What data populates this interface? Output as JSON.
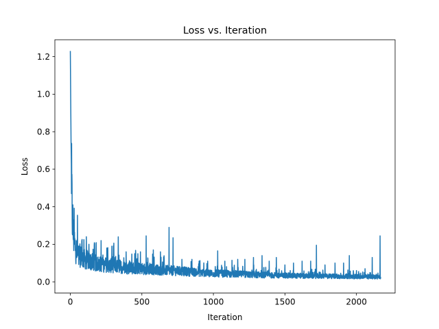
{
  "chart_data": {
    "type": "line",
    "title": "Loss vs. Iteration",
    "xlabel": "Iteration",
    "ylabel": "Loss",
    "xlim": [
      -108,
      2270
    ],
    "ylim": [
      -0.06,
      1.29
    ],
    "xticks": [
      0,
      500,
      1000,
      1500,
      2000
    ],
    "yticks": [
      0.0,
      0.2,
      0.4,
      0.6,
      0.8,
      1.0,
      1.2
    ],
    "ytick_labels": [
      "0.0",
      "0.2",
      "0.4",
      "0.6",
      "0.8",
      "1.0",
      "1.2"
    ],
    "grid": false,
    "line_color": "#1f77b4",
    "n_iterations": 2170,
    "series": [
      {
        "x": [
          0,
          5,
          10,
          15,
          20,
          30,
          40,
          60,
          80,
          100,
          150,
          200,
          300,
          400,
          500,
          600,
          700,
          800,
          900,
          1000,
          1200,
          1400,
          1600,
          1800,
          2000,
          2100,
          2170
        ],
        "y": [
          1.23,
          0.75,
          0.45,
          0.33,
          0.26,
          0.2,
          0.17,
          0.145,
          0.13,
          0.12,
          0.105,
          0.095,
          0.085,
          0.075,
          0.07,
          0.065,
          0.06,
          0.055,
          0.05,
          0.045,
          0.04,
          0.035,
          0.032,
          0.03,
          0.028,
          0.027,
          0.027
        ]
      }
    ],
    "spikes": [
      {
        "x": 18,
        "y": 0.41
      },
      {
        "x": 50,
        "y": 0.355
      },
      {
        "x": 80,
        "y": 0.22
      },
      {
        "x": 95,
        "y": 0.225
      },
      {
        "x": 130,
        "y": 0.2
      },
      {
        "x": 170,
        "y": 0.205
      },
      {
        "x": 215,
        "y": 0.22
      },
      {
        "x": 255,
        "y": 0.18
      },
      {
        "x": 290,
        "y": 0.19
      },
      {
        "x": 335,
        "y": 0.24
      },
      {
        "x": 390,
        "y": 0.16
      },
      {
        "x": 450,
        "y": 0.15
      },
      {
        "x": 490,
        "y": 0.16
      },
      {
        "x": 530,
        "y": 0.245
      },
      {
        "x": 580,
        "y": 0.17
      },
      {
        "x": 630,
        "y": 0.16
      },
      {
        "x": 690,
        "y": 0.29
      },
      {
        "x": 718,
        "y": 0.235
      },
      {
        "x": 780,
        "y": 0.12
      },
      {
        "x": 850,
        "y": 0.12
      },
      {
        "x": 900,
        "y": 0.11
      },
      {
        "x": 960,
        "y": 0.11
      },
      {
        "x": 1030,
        "y": 0.165
      },
      {
        "x": 1080,
        "y": 0.11
      },
      {
        "x": 1130,
        "y": 0.115
      },
      {
        "x": 1170,
        "y": 0.12
      },
      {
        "x": 1220,
        "y": 0.12
      },
      {
        "x": 1280,
        "y": 0.13
      },
      {
        "x": 1340,
        "y": 0.14
      },
      {
        "x": 1390,
        "y": 0.11
      },
      {
        "x": 1440,
        "y": 0.13
      },
      {
        "x": 1500,
        "y": 0.09
      },
      {
        "x": 1560,
        "y": 0.1
      },
      {
        "x": 1620,
        "y": 0.11
      },
      {
        "x": 1680,
        "y": 0.11
      },
      {
        "x": 1720,
        "y": 0.195
      },
      {
        "x": 1780,
        "y": 0.09
      },
      {
        "x": 1850,
        "y": 0.1
      },
      {
        "x": 1910,
        "y": 0.1
      },
      {
        "x": 1950,
        "y": 0.14
      },
      {
        "x": 2000,
        "y": 0.06
      },
      {
        "x": 2060,
        "y": 0.07
      },
      {
        "x": 2110,
        "y": 0.13
      },
      {
        "x": 2165,
        "y": 0.245
      }
    ]
  }
}
